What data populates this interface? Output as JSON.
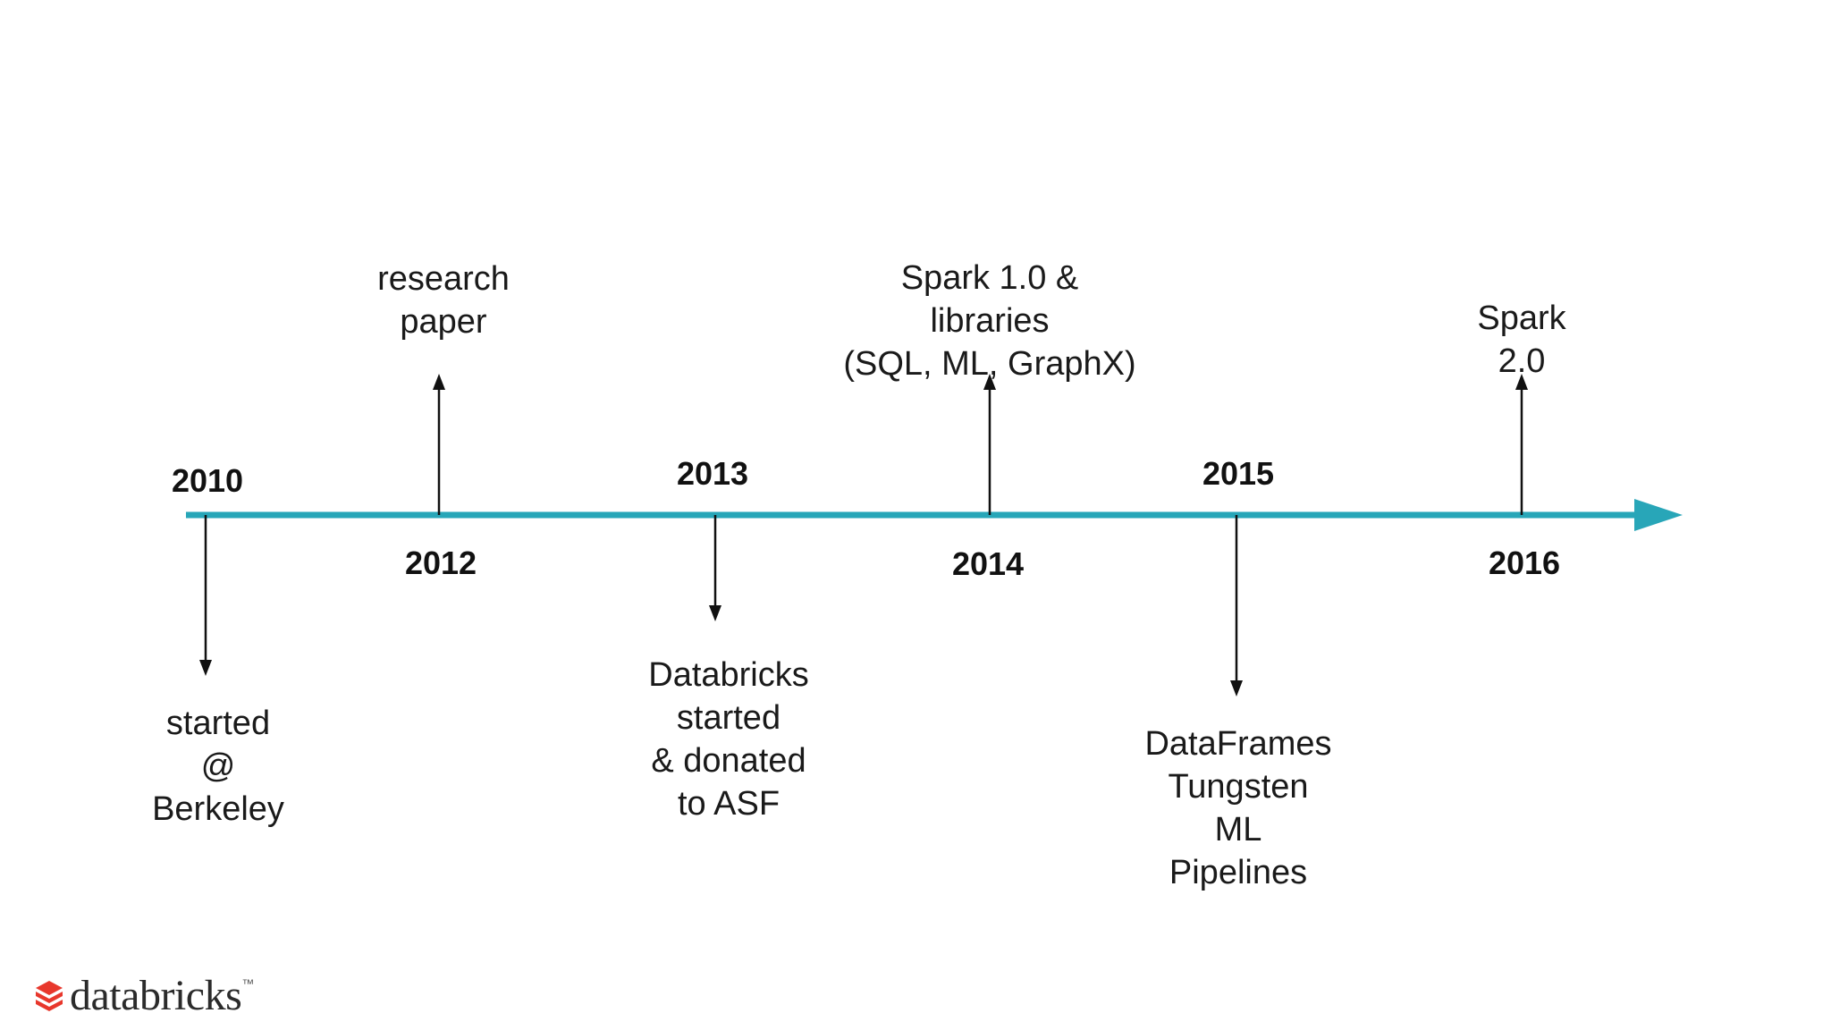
{
  "timeline": {
    "line_color": "#28a6b8",
    "years": [
      {
        "id": "2010",
        "label": "2010"
      },
      {
        "id": "2012",
        "label": "2012"
      },
      {
        "id": "2013",
        "label": "2013"
      },
      {
        "id": "2014",
        "label": "2014"
      },
      {
        "id": "2015",
        "label": "2015"
      },
      {
        "id": "2016",
        "label": "2016"
      }
    ],
    "events": {
      "e2010": [
        "started",
        "@",
        "Berkeley"
      ],
      "e2012": [
        "research",
        "paper"
      ],
      "e2013": [
        "Databricks",
        "started",
        "& donated",
        "to ASF"
      ],
      "e2014": [
        "Spark 1.0 &",
        "libraries",
        "(SQL, ML, GraphX)"
      ],
      "e2015": [
        "DataFrames",
        "Tungsten",
        "ML",
        "Pipelines"
      ],
      "e2016": [
        "Spark",
        "2.0"
      ]
    }
  },
  "logo": {
    "text": "databricks",
    "trademark": "™",
    "color": "#e8372c"
  }
}
